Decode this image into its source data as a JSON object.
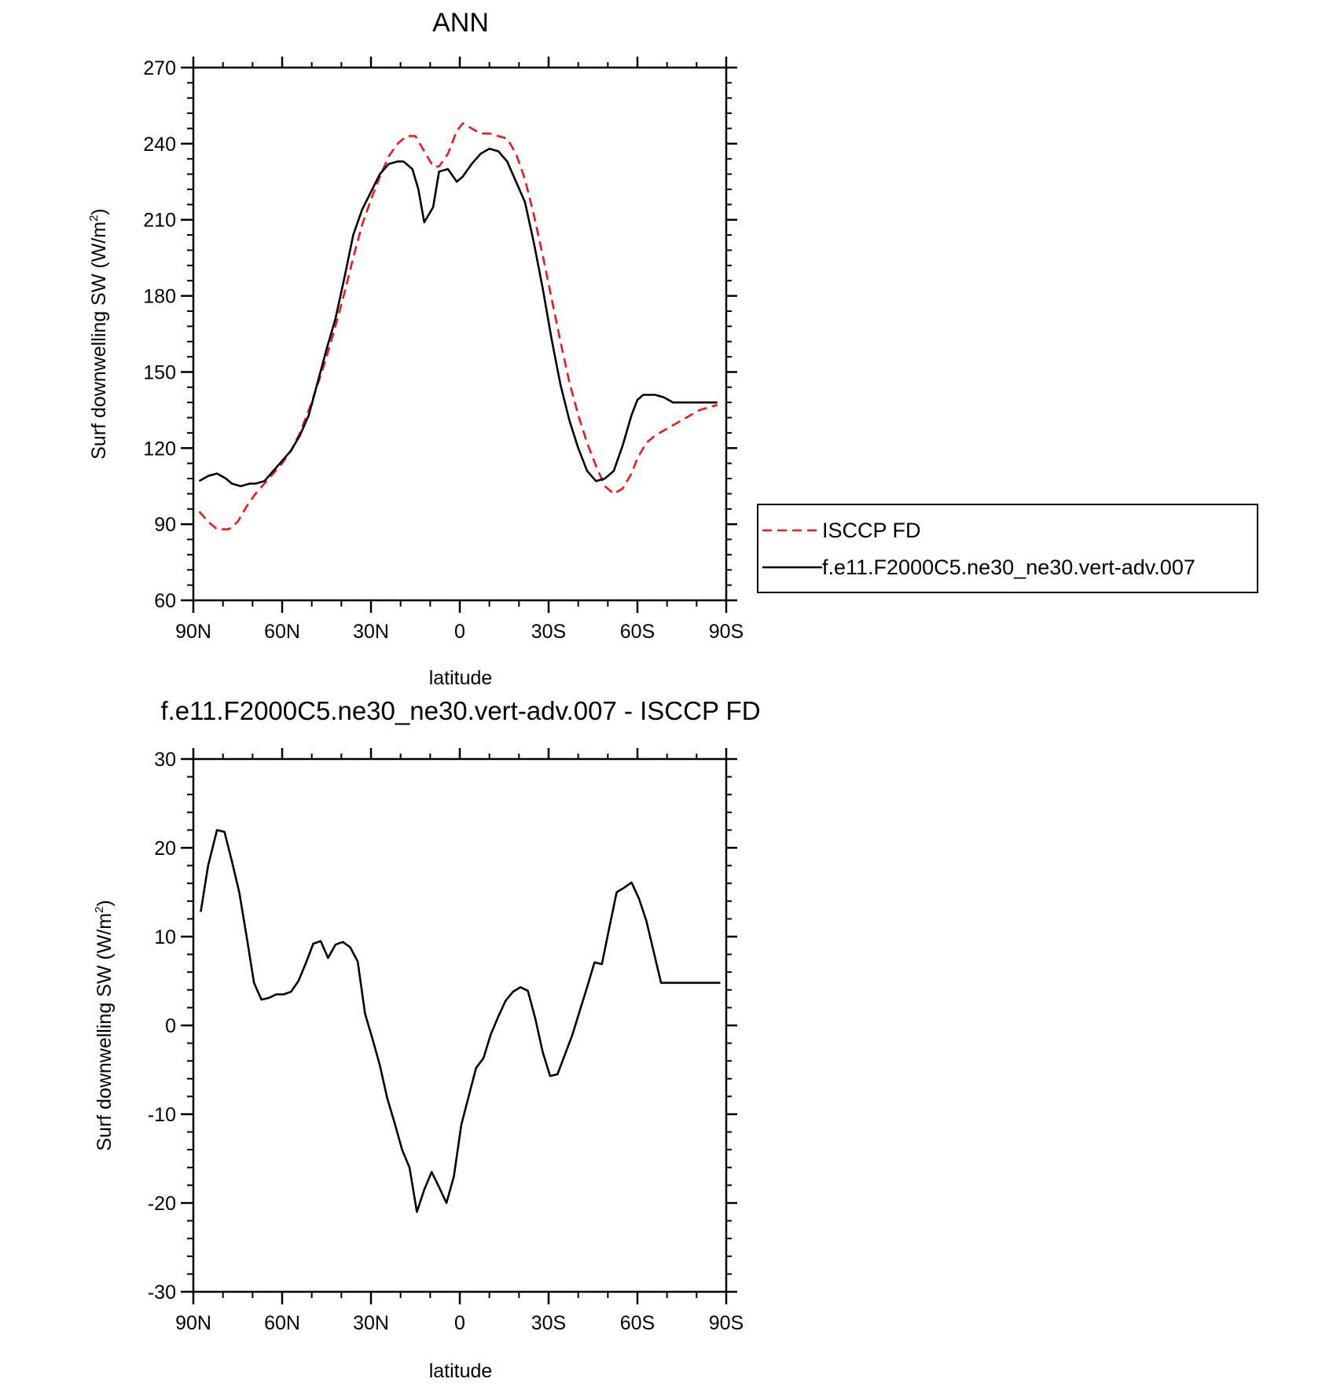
{
  "chart_data": [
    {
      "type": "line",
      "title": "ANN",
      "xlabel": "latitude",
      "ylabel": "Surf downwelling SW (W/m",
      "ylabel_sup": "2",
      "ylabel_end": ")",
      "xlim": [
        90,
        -90
      ],
      "ylim": [
        60,
        270
      ],
      "xticks": [
        90,
        60,
        30,
        0,
        -30,
        -60,
        -90
      ],
      "xtick_labels": [
        "90N",
        "60N",
        "30N",
        "0",
        "30S",
        "60S",
        "90S"
      ],
      "yticks": [
        60,
        90,
        120,
        150,
        180,
        210,
        240,
        270
      ],
      "ytick_labels": [
        "60",
        "90",
        "120",
        "150",
        "180",
        "210",
        "240",
        "270"
      ],
      "legend": "right",
      "series": [
        {
          "name": "ISCCP FD",
          "color": "#e8191c",
          "dash": "dashed",
          "x": [
            88,
            85,
            82,
            78,
            75,
            72,
            69,
            66,
            63,
            60,
            57,
            54,
            51,
            48,
            45,
            42,
            39,
            36,
            33,
            30,
            27,
            24,
            21,
            18,
            15,
            12,
            9,
            7,
            4,
            1,
            -1,
            -4,
            -7,
            -10,
            -13,
            -16,
            -19,
            -22,
            -25,
            -28,
            -31,
            -34,
            -37,
            -40,
            -43,
            -46,
            -49,
            -52,
            -55,
            -58,
            -60,
            -63,
            -66,
            -69,
            -72,
            -75,
            -78,
            -81,
            -84,
            -87
          ],
          "y": [
            95,
            91,
            88,
            88,
            91,
            97,
            102,
            106,
            110,
            114,
            119,
            126,
            135,
            145,
            156,
            168,
            181,
            195,
            208,
            218,
            227,
            235,
            240,
            243,
            243,
            237,
            231,
            231,
            236,
            245,
            248,
            246,
            244,
            244,
            243,
            242,
            236,
            226,
            212,
            196,
            179,
            162,
            146,
            133,
            122,
            113,
            105,
            102,
            104,
            110,
            116,
            122,
            125,
            127,
            129,
            131,
            133,
            135,
            136,
            137
          ]
        },
        {
          "name": "f.e11.F2000C5.ne30_ne30.vert-adv.007",
          "color": "#000000",
          "dash": "solid",
          "x": [
            88,
            85,
            82,
            79,
            77,
            74,
            71,
            69,
            66,
            63,
            60,
            57,
            54,
            51,
            48,
            45,
            42,
            39,
            36,
            33,
            30,
            27,
            24,
            21,
            19,
            16,
            14,
            12,
            9,
            7,
            4,
            1,
            -1,
            -4,
            -7,
            -10,
            -13,
            -16,
            -19,
            -22,
            -25,
            -28,
            -31,
            -34,
            -37,
            -40,
            -43,
            -46,
            -49,
            -52,
            -55,
            -58,
            -60,
            -62,
            -66,
            -69,
            -72,
            -75,
            -78,
            -81,
            -84,
            -87
          ],
          "y": [
            107,
            109,
            110,
            108,
            106,
            105,
            106,
            106,
            107,
            111,
            115,
            119,
            125,
            133,
            146,
            159,
            171,
            187,
            204,
            214,
            221,
            228,
            232,
            233,
            233,
            230,
            222,
            209,
            215,
            229,
            230,
            225,
            227,
            232,
            236,
            238,
            237,
            233,
            225,
            217,
            201,
            183,
            163,
            145,
            131,
            120,
            111,
            107,
            108,
            111,
            121,
            133,
            139,
            141,
            141,
            140,
            138,
            138,
            138,
            138,
            138,
            138
          ]
        }
      ]
    },
    {
      "type": "line",
      "title": "f.e11.F2000C5.ne30_ne30.vert-adv.007 - ISCCP FD",
      "xlabel": "latitude",
      "ylabel": "Surf downwelling SW (W/m",
      "ylabel_sup": "2",
      "ylabel_end": ")",
      "xlim": [
        90,
        -90
      ],
      "ylim": [
        -30,
        30
      ],
      "xticks": [
        90,
        60,
        30,
        0,
        -30,
        -60,
        -90
      ],
      "xtick_labels": [
        "90N",
        "60N",
        "30N",
        "0",
        "30S",
        "60S",
        "90S"
      ],
      "yticks": [
        -30,
        -20,
        -10,
        0,
        10,
        20,
        30
      ],
      "ytick_labels": [
        "-30",
        "-20",
        "-10",
        "0",
        "10",
        "20",
        "30"
      ],
      "series": [
        {
          "color": "#000000",
          "dash": "solid",
          "x": [
            87.5,
            85,
            82,
            79.5,
            77,
            74.5,
            72,
            69.5,
            67,
            64.5,
            62,
            59.5,
            57,
            54.5,
            52,
            49.5,
            47,
            44.5,
            42,
            39.5,
            37,
            34.5,
            32,
            29.5,
            27,
            24.5,
            22,
            19.5,
            17,
            14.5,
            12,
            9.5,
            7,
            4.5,
            2,
            -0.5,
            -3,
            -5.5,
            -8,
            -10.5,
            -13,
            -15.5,
            -18,
            -20.5,
            -23,
            -25.5,
            -28,
            -30.5,
            -33,
            -35.5,
            -38,
            -40.5,
            -43,
            -45.5,
            -48,
            -50.5,
            -53,
            -55.5,
            -58,
            -60.5,
            -63,
            -65.5,
            -68,
            -70.5,
            -73,
            -75.5,
            -78,
            -80.5,
            -83,
            -85.5,
            -88
          ],
          "y": [
            12.8,
            18,
            22,
            21.8,
            18.5,
            15,
            10,
            4.8,
            2.9,
            3.1,
            3.5,
            3.5,
            3.8,
            5,
            7,
            9.2,
            9.5,
            7.6,
            9.1,
            9.4,
            8.8,
            7.2,
            1.3,
            -1.5,
            -4.5,
            -8.2,
            -11,
            -14,
            -16,
            -21,
            -18.5,
            -16.5,
            -18.2,
            -20,
            -17,
            -11.2,
            -8,
            -4.8,
            -3.7,
            -1,
            1,
            2.8,
            3.8,
            4.3,
            3.9,
            0.8,
            -3,
            -5.7,
            -5.5,
            -3.3,
            -1.1,
            1.6,
            4.3,
            7.1,
            6.9,
            11.0,
            15.0,
            15.5,
            16.1,
            14.3,
            11.8,
            8.3,
            4.8,
            4.8,
            4.8,
            4.8,
            4.8,
            4.8,
            4.8,
            4.8,
            4.8
          ]
        }
      ]
    }
  ]
}
